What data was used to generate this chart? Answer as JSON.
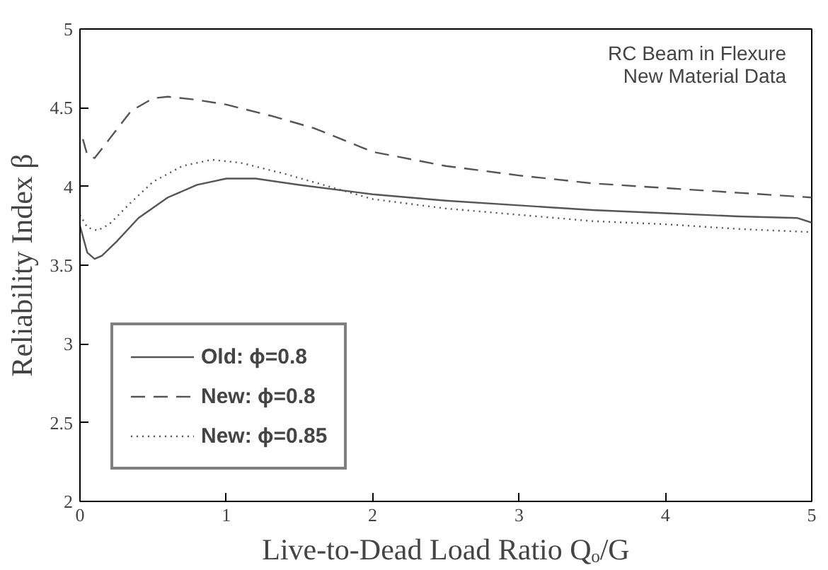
{
  "chart_data": {
    "type": "line",
    "xlabel": "Live-to-Dead Load Ratio Qₒ/G",
    "ylabel": "Reliability Index β",
    "annotations": [
      "RC Beam in Flexure",
      "New Material Data"
    ],
    "xlim": [
      0,
      5
    ],
    "ylim": [
      2,
      5
    ],
    "xticks": [
      0,
      1,
      2,
      3,
      4,
      5
    ],
    "yticks": [
      2,
      2.5,
      3,
      3.5,
      4,
      4.5,
      5
    ],
    "grid": false,
    "legend": "bottom left",
    "marker": "none",
    "series": [
      {
        "name": "Old: ϕ=0.8",
        "color": "#555555",
        "line_style": "solid",
        "x": [
          0,
          0.05,
          0.1,
          0.15,
          0.25,
          0.4,
          0.6,
          0.8,
          1.0,
          1.2,
          1.5,
          2.0,
          2.5,
          3.0,
          3.5,
          4.0,
          4.5,
          4.9,
          5.0
        ],
        "values": [
          3.75,
          3.58,
          3.54,
          3.56,
          3.65,
          3.8,
          3.93,
          4.01,
          4.05,
          4.05,
          4.01,
          3.95,
          3.91,
          3.88,
          3.85,
          3.83,
          3.81,
          3.8,
          3.77
        ]
      },
      {
        "name": "New: ϕ=0.8",
        "color": "#555555",
        "line_style": "dashed",
        "x": [
          0.02,
          0.05,
          0.1,
          0.2,
          0.35,
          0.5,
          0.6,
          0.8,
          1.0,
          1.3,
          1.6,
          2.0,
          2.5,
          3.0,
          3.5,
          4.0,
          4.5,
          5.0
        ],
        "values": [
          4.3,
          4.2,
          4.18,
          4.3,
          4.48,
          4.56,
          4.57,
          4.55,
          4.52,
          4.45,
          4.37,
          4.22,
          4.13,
          4.07,
          4.02,
          3.99,
          3.96,
          3.93
        ]
      },
      {
        "name": "New: ϕ=0.85",
        "color": "#555555",
        "line_style": "dotted",
        "x": [
          0,
          0.05,
          0.12,
          0.2,
          0.35,
          0.5,
          0.7,
          0.9,
          1.1,
          1.4,
          1.7,
          2.0,
          2.5,
          3.0,
          3.5,
          4.0,
          4.5,
          5.0
        ],
        "values": [
          3.82,
          3.74,
          3.72,
          3.76,
          3.9,
          4.03,
          4.13,
          4.17,
          4.15,
          4.08,
          4.0,
          3.92,
          3.86,
          3.82,
          3.78,
          3.76,
          3.73,
          3.71
        ]
      }
    ]
  }
}
